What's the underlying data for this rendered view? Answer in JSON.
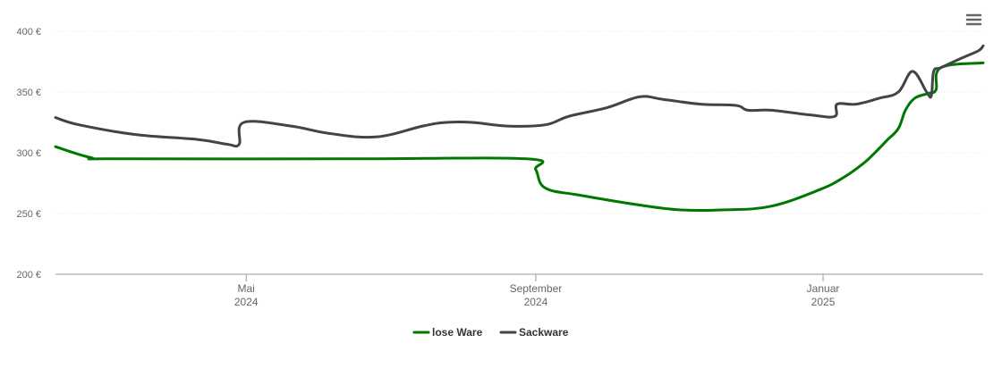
{
  "chart_data": {
    "type": "line",
    "title": "",
    "xlabel": "",
    "ylabel": "",
    "ylim": [
      200,
      400
    ],
    "xlim": [
      "2024-02-10",
      "2025-03-10"
    ],
    "y_ticks": [
      {
        "value": 200,
        "label": "200 €"
      },
      {
        "value": 250,
        "label": "250 €"
      },
      {
        "value": 300,
        "label": "300 €"
      },
      {
        "value": 350,
        "label": "350 €"
      },
      {
        "value": 400,
        "label": "400 €"
      }
    ],
    "x_ticks": [
      {
        "date": "2024-05-01",
        "month": "Mai",
        "year": "2024"
      },
      {
        "date": "2024-09-01",
        "month": "September",
        "year": "2024"
      },
      {
        "date": "2025-01-01",
        "month": "Januar",
        "year": "2025"
      }
    ],
    "grid": "horizontal dotted",
    "legend": "bottom-center",
    "series": [
      {
        "name": "lose Ware",
        "color": "#007800",
        "points": [
          [
            "2024-02-10",
            305
          ],
          [
            "2024-02-25",
            296
          ],
          [
            "2024-03-06",
            295
          ],
          [
            "2024-06-15",
            295
          ],
          [
            "2024-08-28",
            295
          ],
          [
            "2024-09-01",
            286
          ],
          [
            "2024-09-05",
            271
          ],
          [
            "2024-09-20",
            265
          ],
          [
            "2024-10-15",
            257
          ],
          [
            "2024-11-01",
            253
          ],
          [
            "2024-11-20",
            253
          ],
          [
            "2024-12-10",
            256
          ],
          [
            "2024-12-31",
            270
          ],
          [
            "2025-01-10",
            280
          ],
          [
            "2025-01-18",
            291
          ],
          [
            "2025-01-23",
            300
          ],
          [
            "2025-01-28",
            310
          ],
          [
            "2025-02-02",
            320
          ],
          [
            "2025-02-05",
            335
          ],
          [
            "2025-02-09",
            345
          ],
          [
            "2025-02-15",
            349
          ],
          [
            "2025-02-18",
            352
          ],
          [
            "2025-02-20",
            370
          ],
          [
            "2025-03-10",
            374
          ]
        ]
      },
      {
        "name": "Sackware",
        "color": "#434348",
        "points": [
          [
            "2024-02-10",
            329
          ],
          [
            "2024-02-20",
            323
          ],
          [
            "2024-03-15",
            315
          ],
          [
            "2024-04-10",
            311
          ],
          [
            "2024-04-23",
            307
          ],
          [
            "2024-04-28",
            307
          ],
          [
            "2024-04-30",
            325
          ],
          [
            "2024-05-20",
            322
          ],
          [
            "2024-06-05",
            316
          ],
          [
            "2024-06-25",
            313
          ],
          [
            "2024-07-15",
            322
          ],
          [
            "2024-07-25",
            325
          ],
          [
            "2024-08-05",
            325
          ],
          [
            "2024-08-20",
            322
          ],
          [
            "2024-09-05",
            323
          ],
          [
            "2024-09-15",
            330
          ],
          [
            "2024-10-01",
            337
          ],
          [
            "2024-10-15",
            346
          ],
          [
            "2024-10-25",
            344
          ],
          [
            "2024-11-10",
            340
          ],
          [
            "2024-11-25",
            339
          ],
          [
            "2024-11-30",
            335
          ],
          [
            "2024-12-10",
            335
          ],
          [
            "2024-12-27",
            331
          ],
          [
            "2025-01-06",
            330
          ],
          [
            "2025-01-07",
            340
          ],
          [
            "2025-01-15",
            340
          ],
          [
            "2025-01-25",
            345
          ],
          [
            "2025-02-02",
            350
          ],
          [
            "2025-02-08",
            367
          ],
          [
            "2025-02-14",
            350
          ],
          [
            "2025-02-16",
            347
          ],
          [
            "2025-02-17",
            367
          ],
          [
            "2025-02-20",
            370
          ],
          [
            "2025-03-01",
            378
          ],
          [
            "2025-03-08",
            384
          ],
          [
            "2025-03-10",
            388
          ]
        ]
      }
    ]
  }
}
